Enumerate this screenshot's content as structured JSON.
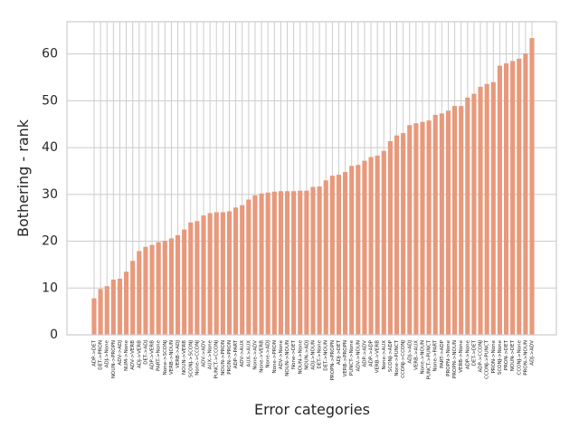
{
  "chart_data": {
    "type": "bar",
    "xlabel": "Error categories",
    "ylabel": "Bothering - rank",
    "categories": [
      "ADP->DET",
      "DET->PRON",
      "ADJ->None",
      "NOUN->PROPN",
      "ADV->ADJ",
      "NUM->None",
      "ADV->VERB",
      "ADJ->VERB",
      "DET->ADJ",
      "ADP->VERB",
      "PART->None",
      "None->SCONJ",
      "VERB->NOUN",
      "VERB->ADJ",
      "NOUN->VERB",
      "SCONJ->SCONJ",
      "None->CCONJ",
      "ADV->ADV",
      "AUX->None",
      "PUNCT->CCONJ",
      "NOUN->PRON",
      "PRON->PRON",
      "ADP->PART",
      "ADV->AUX",
      "AUX->AUX",
      "None->ADV",
      "None->VERB",
      "None->ADJ",
      "None->PRON",
      "ADV->None",
      "NOUN->NOUN",
      "None->DET",
      "NOUN->None",
      "NOUN->ADJ",
      "ADJ->NOUN",
      "DET->None",
      "DET->NOUN",
      "PROPN->PROPN",
      "ADJ->DET",
      "VERB->PROPN",
      "PUNCT->None",
      "ADV->NOUN",
      "ADP->ADV",
      "ADP->ADP",
      "VERB->VERB",
      "None->AUX",
      "SCONJ->ADP",
      "None->PUNCT",
      "CCONJ->CCONJ",
      "ADJ->ADJ",
      "VERB->AUX",
      "None->NOUN",
      "PUNCT->PUNCT",
      "None->PART",
      "PART->ADP",
      "PROPN->None",
      "PROPN->NOUN",
      "VERB->None",
      "ADP->None",
      "DET->DET",
      "ADP->CCONJ",
      "CCONJ->PUNCT",
      "PRON->None",
      "SCONJ->None",
      "PRON->DET",
      "NOUN->DET",
      "CCONJ->None",
      "PRON->NOUN",
      "ADJ->ADV"
    ],
    "values": [
      7.8,
      9.8,
      10.4,
      11.8,
      12.0,
      13.5,
      15.8,
      17.9,
      18.8,
      19.2,
      19.8,
      20.1,
      20.6,
      21.3,
      22.5,
      24.0,
      24.3,
      25.5,
      26.0,
      26.2,
      26.2,
      26.4,
      27.2,
      27.7,
      28.9,
      29.8,
      30.2,
      30.4,
      30.6,
      30.7,
      30.7,
      30.7,
      30.8,
      30.8,
      31.6,
      31.7,
      33.0,
      34.0,
      34.2,
      34.8,
      36.1,
      36.3,
      37.2,
      38.0,
      38.3,
      39.3,
      41.4,
      42.6,
      43.1,
      44.8,
      45.2,
      45.5,
      45.8,
      47.0,
      47.3,
      47.9,
      48.9,
      48.9,
      50.7,
      51.5,
      53.0,
      53.6,
      54.0,
      57.5,
      58.0,
      58.5,
      59.0,
      60.1,
      63.4
    ],
    "color": "#e8997c",
    "ylim": [
      0,
      66.9
    ],
    "yticks": [
      0,
      10,
      20,
      30,
      40,
      50,
      60
    ],
    "grid": true
  }
}
